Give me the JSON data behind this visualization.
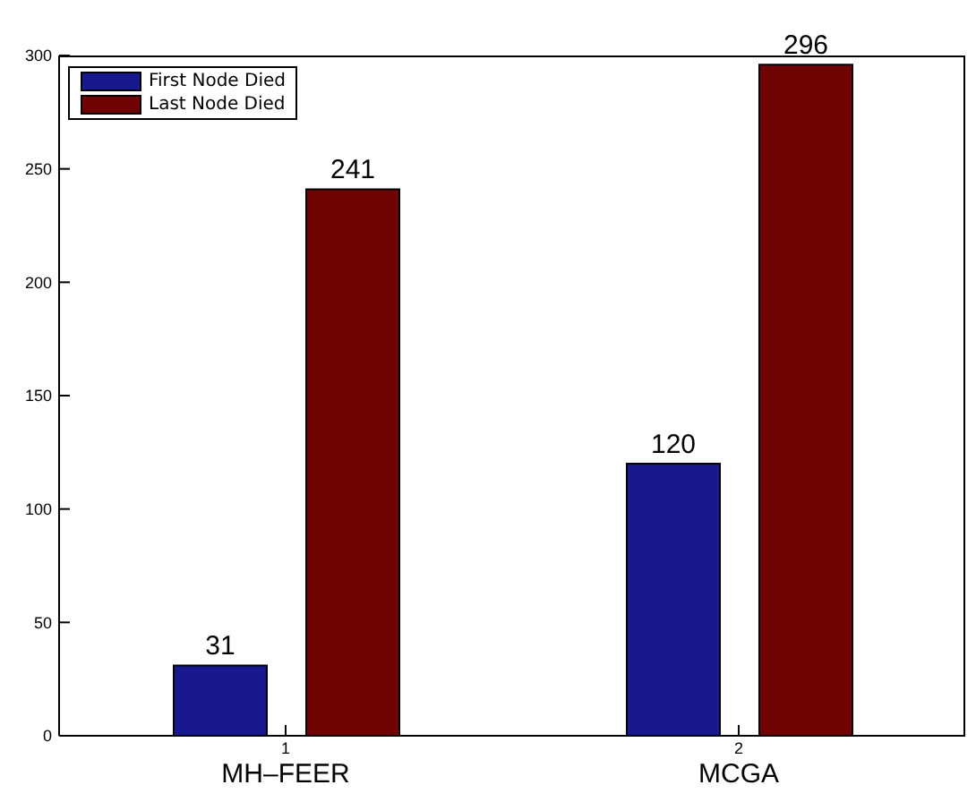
{
  "chart_data": {
    "type": "bar",
    "categories": [
      "1",
      "2"
    ],
    "series": [
      {
        "name": "First Node Died",
        "color": "#18188f",
        "values": [
          31,
          120
        ]
      },
      {
        "name": "Last Node Died",
        "color": "#700303",
        "values": [
          241,
          296
        ]
      }
    ],
    "ylim": [
      0,
      300
    ],
    "yticks": [
      0,
      50,
      100,
      150,
      200,
      250,
      300
    ],
    "data_labels": true,
    "legend": "top left",
    "grid": false,
    "annotations": [
      "MH–FEER",
      "MCGA"
    ]
  }
}
